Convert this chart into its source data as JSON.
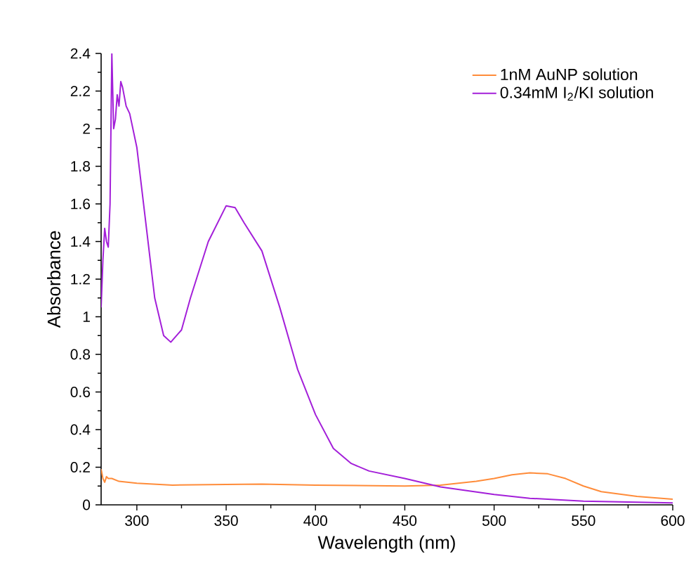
{
  "chart_data": {
    "type": "line",
    "xlabel": "Wavelength (nm)",
    "ylabel": "Absorbance",
    "xlim": [
      280,
      600
    ],
    "ylim": [
      0,
      2.4
    ],
    "xticks": [
      300,
      350,
      400,
      450,
      500,
      550,
      600
    ],
    "yticks": [
      0,
      0.2,
      0.4,
      0.6,
      0.8,
      1,
      1.2,
      1.4,
      1.6,
      1.8,
      2,
      2.2,
      2.4
    ],
    "grid": false,
    "legend": "top right",
    "marker": "none",
    "line_style": "solid",
    "series": [
      {
        "name": "1nM AuNP solution",
        "color": "#ff8c3a",
        "x": [
          280,
          281,
          282,
          283,
          284,
          286,
          290,
          300,
          320,
          350,
          370,
          400,
          450,
          470,
          490,
          500,
          510,
          520,
          530,
          540,
          550,
          560,
          580,
          600
        ],
        "values": [
          0.19,
          0.14,
          0.12,
          0.15,
          0.14,
          0.14,
          0.125,
          0.115,
          0.105,
          0.108,
          0.11,
          0.105,
          0.1,
          0.105,
          0.125,
          0.14,
          0.16,
          0.17,
          0.165,
          0.14,
          0.1,
          0.07,
          0.045,
          0.03
        ]
      },
      {
        "name": "0.34mM I$_{2}$/KI solution",
        "color": "#a31fd9",
        "x": [
          280,
          281,
          282,
          283,
          284,
          285,
          286,
          287,
          288,
          289,
          290,
          291,
          292,
          294,
          296,
          300,
          305,
          310,
          315,
          319,
          325,
          330,
          340,
          350,
          355,
          360,
          370,
          380,
          390,
          400,
          410,
          420,
          430,
          450,
          470,
          500,
          520,
          550,
          600
        ],
        "values": [
          1.05,
          1.3,
          1.47,
          1.4,
          1.37,
          1.6,
          2.4,
          2.0,
          2.05,
          2.18,
          2.12,
          2.25,
          2.22,
          2.12,
          2.08,
          1.9,
          1.5,
          1.1,
          0.9,
          0.865,
          0.93,
          1.1,
          1.4,
          1.59,
          1.58,
          1.5,
          1.35,
          1.05,
          0.72,
          0.48,
          0.3,
          0.22,
          0.18,
          0.14,
          0.095,
          0.055,
          0.035,
          0.02,
          0.01
        ]
      }
    ]
  }
}
